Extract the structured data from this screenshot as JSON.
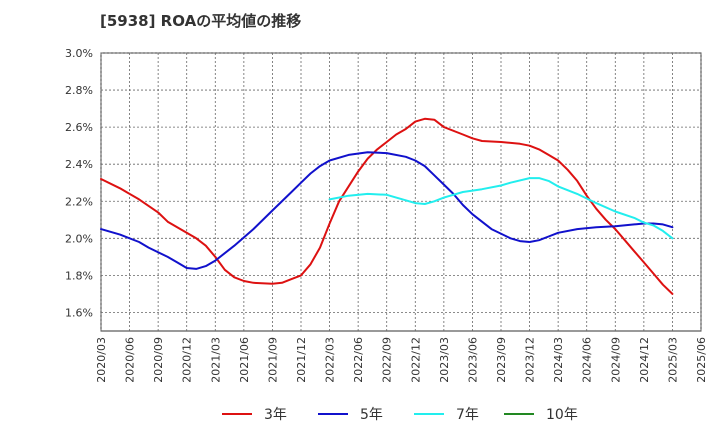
{
  "chart_data": {
    "type": "line",
    "title": "[5938]  ROAの平均値の推移",
    "xlabel": "",
    "ylabel": "",
    "ylim": [
      1.5,
      3.0
    ],
    "y_ticks": [
      "3.0%",
      "2.8%",
      "2.6%",
      "2.4%",
      "2.2%",
      "2.0%",
      "1.8%",
      "1.6%"
    ],
    "y_tick_values": [
      3.0,
      2.8,
      2.6,
      2.4,
      2.2,
      2.0,
      1.8,
      1.6
    ],
    "x_ticks": [
      "2020/03",
      "2020/06",
      "2020/09",
      "2020/12",
      "2021/03",
      "2021/06",
      "2021/09",
      "2021/12",
      "2022/03",
      "2022/06",
      "2022/09",
      "2022/12",
      "2023/03",
      "2023/06",
      "2023/09",
      "2023/12",
      "2024/03",
      "2024/06",
      "2024/09",
      "2024/12",
      "2025/03",
      "2025/06"
    ],
    "grid": true,
    "legend_position": "bottom",
    "series": [
      {
        "name": "3年",
        "color": "#dd1111",
        "points": [
          [
            "2020/03",
            2.32
          ],
          [
            "2020/05",
            2.27
          ],
          [
            "2020/07",
            2.21
          ],
          [
            "2020/09",
            2.14
          ],
          [
            "2020/10",
            2.09
          ],
          [
            "2020/12",
            2.03
          ],
          [
            "2021/01",
            2.0
          ],
          [
            "2021/02",
            1.96
          ],
          [
            "2021/03",
            1.9
          ],
          [
            "2021/04",
            1.83
          ],
          [
            "2021/05",
            1.79
          ],
          [
            "2021/06",
            1.77
          ],
          [
            "2021/07",
            1.76
          ],
          [
            "2021/09",
            1.755
          ],
          [
            "2021/10",
            1.76
          ],
          [
            "2021/11",
            1.78
          ],
          [
            "2021/12",
            1.8
          ],
          [
            "2022/01",
            1.86
          ],
          [
            "2022/02",
            1.95
          ],
          [
            "2022/03",
            2.08
          ],
          [
            "2022/04",
            2.2
          ],
          [
            "2022/05",
            2.28
          ],
          [
            "2022/06",
            2.36
          ],
          [
            "2022/07",
            2.43
          ],
          [
            "2022/08",
            2.48
          ],
          [
            "2022/09",
            2.52
          ],
          [
            "2022/10",
            2.56
          ],
          [
            "2022/11",
            2.59
          ],
          [
            "2022/12",
            2.63
          ],
          [
            "2023/01",
            2.645
          ],
          [
            "2023/02",
            2.64
          ],
          [
            "2023/03",
            2.6
          ],
          [
            "2023/05",
            2.56
          ],
          [
            "2023/06",
            2.54
          ],
          [
            "2023/07",
            2.525
          ],
          [
            "2023/09",
            2.52
          ],
          [
            "2023/11",
            2.51
          ],
          [
            "2023/12",
            2.5
          ],
          [
            "2024/01",
            2.48
          ],
          [
            "2024/02",
            2.45
          ],
          [
            "2024/03",
            2.42
          ],
          [
            "2024/04",
            2.37
          ],
          [
            "2024/05",
            2.31
          ],
          [
            "2024/06",
            2.23
          ],
          [
            "2024/07",
            2.16
          ],
          [
            "2024/08",
            2.1
          ],
          [
            "2024/09",
            2.05
          ],
          [
            "2024/10",
            1.99
          ],
          [
            "2024/11",
            1.93
          ],
          [
            "2024/12",
            1.87
          ],
          [
            "2025/01",
            1.81
          ],
          [
            "2025/02",
            1.75
          ],
          [
            "2025/03",
            1.7
          ]
        ]
      },
      {
        "name": "5年",
        "color": "#1111cc",
        "points": [
          [
            "2020/03",
            2.05
          ],
          [
            "2020/05",
            2.02
          ],
          [
            "2020/07",
            1.98
          ],
          [
            "2020/08",
            1.95
          ],
          [
            "2020/10",
            1.9
          ],
          [
            "2020/11",
            1.87
          ],
          [
            "2020/12",
            1.84
          ],
          [
            "2021/01",
            1.835
          ],
          [
            "2021/02",
            1.85
          ],
          [
            "2021/03",
            1.88
          ],
          [
            "2021/05",
            1.96
          ],
          [
            "2021/07",
            2.05
          ],
          [
            "2021/09",
            2.15
          ],
          [
            "2021/11",
            2.25
          ],
          [
            "2021/12",
            2.3
          ],
          [
            "2022/01",
            2.35
          ],
          [
            "2022/02",
            2.39
          ],
          [
            "2022/03",
            2.42
          ],
          [
            "2022/05",
            2.45
          ],
          [
            "2022/07",
            2.465
          ],
          [
            "2022/09",
            2.46
          ],
          [
            "2022/11",
            2.44
          ],
          [
            "2022/12",
            2.42
          ],
          [
            "2023/01",
            2.39
          ],
          [
            "2023/02",
            2.34
          ],
          [
            "2023/03",
            2.29
          ],
          [
            "2023/04",
            2.24
          ],
          [
            "2023/05",
            2.18
          ],
          [
            "2023/06",
            2.13
          ],
          [
            "2023/07",
            2.09
          ],
          [
            "2023/08",
            2.05
          ],
          [
            "2023/10",
            2.0
          ],
          [
            "2023/11",
            1.985
          ],
          [
            "2023/12",
            1.98
          ],
          [
            "2024/01",
            1.99
          ],
          [
            "2024/02",
            2.01
          ],
          [
            "2024/03",
            2.03
          ],
          [
            "2024/05",
            2.05
          ],
          [
            "2024/07",
            2.06
          ],
          [
            "2024/09",
            2.065
          ],
          [
            "2024/11",
            2.075
          ],
          [
            "2024/12",
            2.08
          ],
          [
            "2025/01",
            2.08
          ],
          [
            "2025/02",
            2.075
          ],
          [
            "2025/03",
            2.06
          ]
        ]
      },
      {
        "name": "7年",
        "color": "#22eeee",
        "points": [
          [
            "2022/03",
            2.21
          ],
          [
            "2022/05",
            2.23
          ],
          [
            "2022/07",
            2.24
          ],
          [
            "2022/09",
            2.235
          ],
          [
            "2022/10",
            2.22
          ],
          [
            "2022/12",
            2.19
          ],
          [
            "2023/01",
            2.185
          ],
          [
            "2023/02",
            2.2
          ],
          [
            "2023/03",
            2.22
          ],
          [
            "2023/05",
            2.25
          ],
          [
            "2023/07",
            2.265
          ],
          [
            "2023/09",
            2.285
          ],
          [
            "2023/10",
            2.3
          ],
          [
            "2023/12",
            2.325
          ],
          [
            "2024/01",
            2.325
          ],
          [
            "2024/02",
            2.31
          ],
          [
            "2024/03",
            2.28
          ],
          [
            "2024/05",
            2.24
          ],
          [
            "2024/07",
            2.19
          ],
          [
            "2024/09",
            2.145
          ],
          [
            "2024/11",
            2.11
          ],
          [
            "2024/12",
            2.085
          ],
          [
            "2025/01",
            2.07
          ],
          [
            "2025/02",
            2.04
          ],
          [
            "2025/03",
            2.0
          ]
        ]
      },
      {
        "name": "10年",
        "color": "#228822",
        "points": []
      }
    ]
  }
}
